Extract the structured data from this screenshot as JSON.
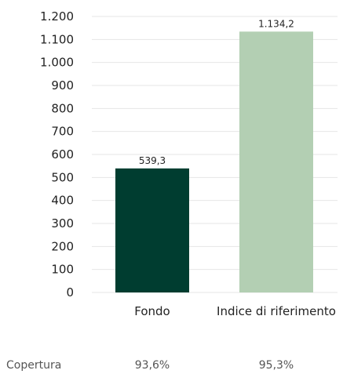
{
  "chart_data": {
    "type": "bar",
    "categories": [
      "Fondo",
      "Indice di riferimento"
    ],
    "values": [
      539.3,
      1134.2
    ],
    "value_labels": [
      "539,3",
      "1.134,2"
    ],
    "colors": [
      "#003d30",
      "#b3cfb3"
    ],
    "ylim": [
      0,
      1200
    ],
    "yticks": [
      0,
      100,
      200,
      300,
      400,
      500,
      600,
      700,
      800,
      900,
      1000,
      1100,
      1200
    ],
    "ytick_labels": [
      "0",
      "100",
      "200",
      "300",
      "400",
      "500",
      "600",
      "700",
      "800",
      "900",
      "1.000",
      "1.100",
      "1.200"
    ],
    "grid": true,
    "title": "",
    "xlabel": "",
    "ylabel": ""
  },
  "coverage": {
    "label": "Copertura",
    "values": [
      "93,6%",
      "95,3%"
    ]
  },
  "colors": {
    "gridline": "#e6e6e6",
    "baseline": "#e6e6e6"
  }
}
